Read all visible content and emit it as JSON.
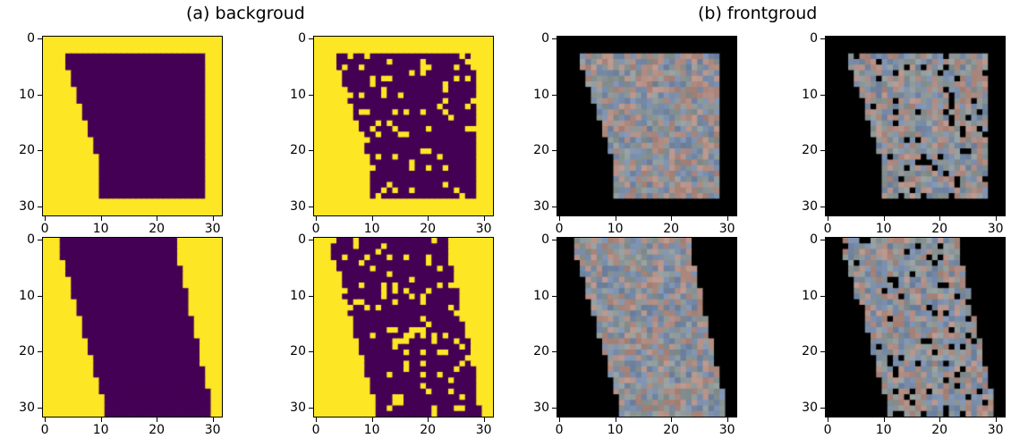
{
  "titles": {
    "background": "(a) backgroud",
    "foreground": "(b) frontgroud"
  },
  "axes": {
    "y_ticks": [
      "0",
      "10",
      "20",
      "30"
    ],
    "x_ticks": [
      "0",
      "10",
      "20",
      "30"
    ]
  },
  "panels": [
    {
      "name": "bg-mask-top-left",
      "kind": "mask",
      "row": 0,
      "col": 0
    },
    {
      "name": "bg-mask-top-right",
      "kind": "mask",
      "row": 0,
      "col": 1
    },
    {
      "name": "fg-image-top-left",
      "kind": "image",
      "row": 0,
      "col": 2
    },
    {
      "name": "fg-image-top-right",
      "kind": "image",
      "row": 0,
      "col": 3
    },
    {
      "name": "bg-mask-bottom-left",
      "kind": "mask",
      "row": 1,
      "col": 0
    },
    {
      "name": "bg-mask-bottom-right",
      "kind": "mask",
      "row": 1,
      "col": 1
    },
    {
      "name": "fg-image-bottom-left",
      "kind": "image",
      "row": 1,
      "col": 2
    },
    {
      "name": "fg-image-bottom-right",
      "kind": "image",
      "row": 1,
      "col": 3
    }
  ],
  "colors": {
    "mask_on": "#fde725",
    "mask_off": "#440154",
    "image_bg": "#000000",
    "image_tint": "#8a8fa8"
  }
}
